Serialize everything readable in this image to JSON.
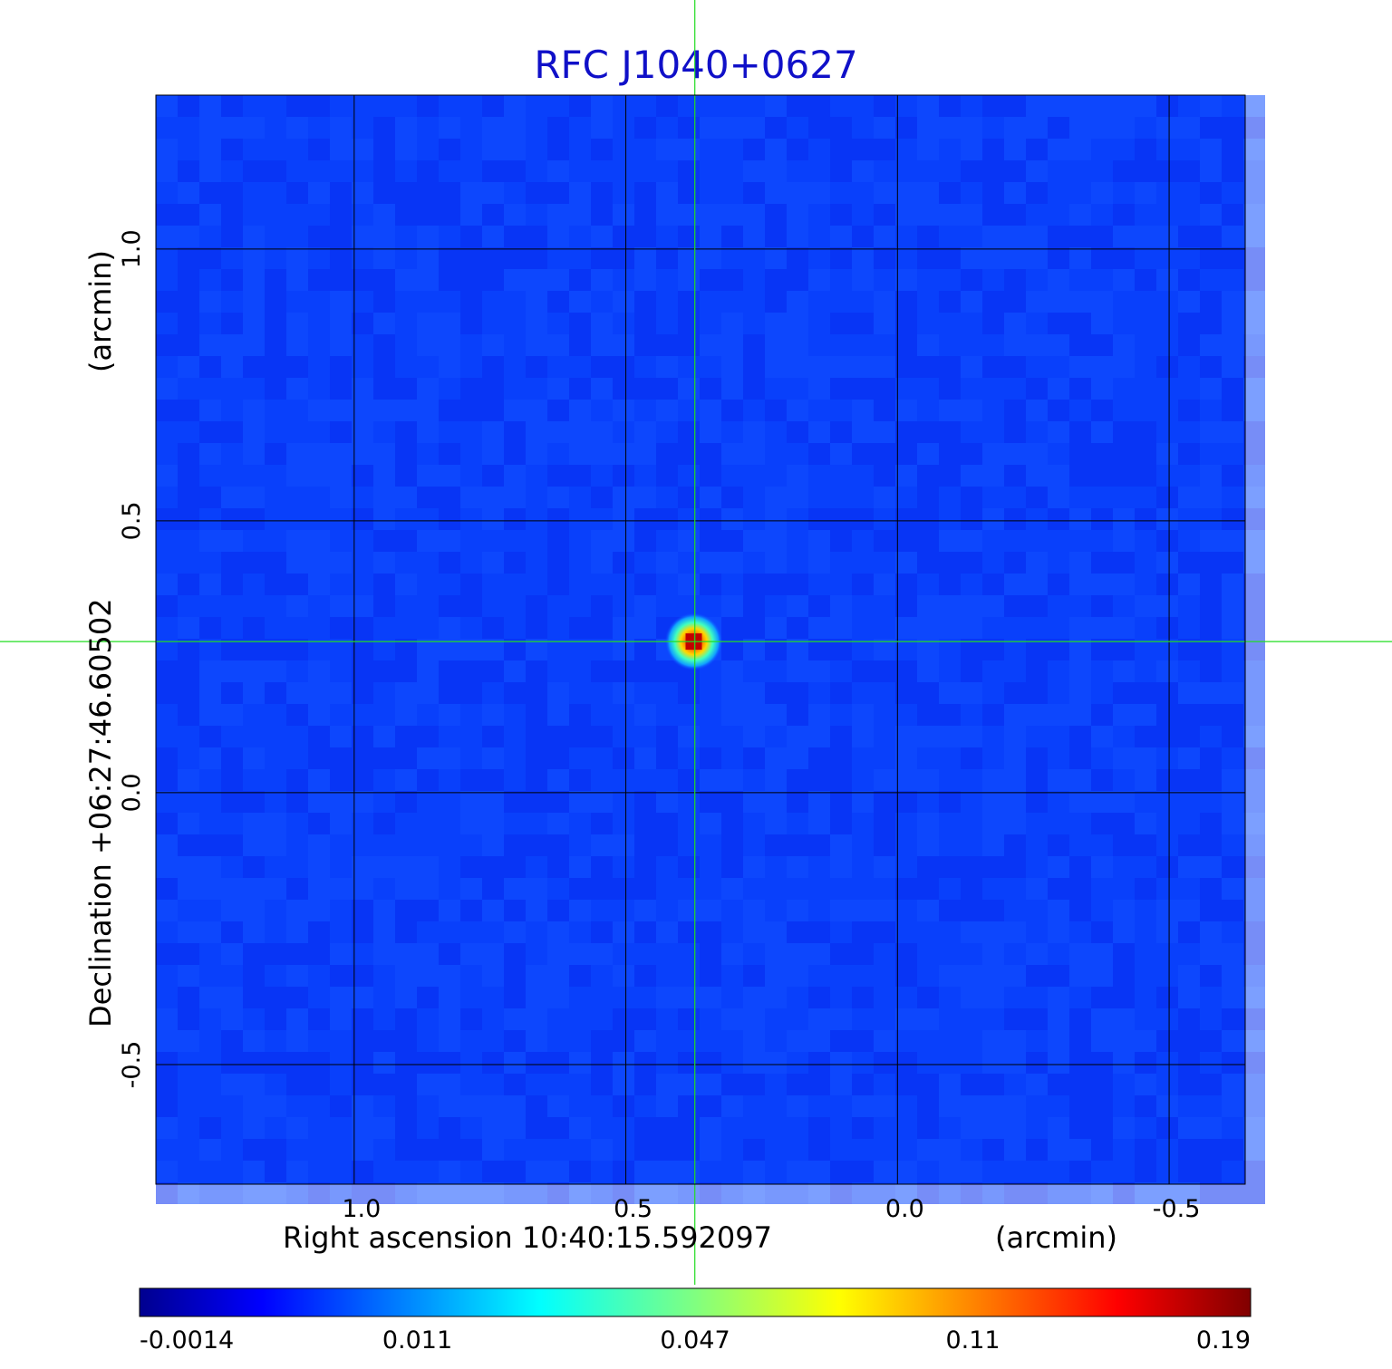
{
  "chart_data": {
    "type": "heatmap",
    "title": "RFC J1040+0627",
    "xlabel": "Right ascension  10:40:15.592097",
    "xlabel_unit": "(arcmin)",
    "ylabel": "Declination  +06:27:46.60502",
    "ylabel_unit": "(arcmin)",
    "x_ticks": [
      "1.0",
      "0.5",
      "0.0",
      "-0.5"
    ],
    "x_tick_values": [
      1.0,
      0.5,
      0.0,
      -0.5
    ],
    "y_ticks": [
      "1.0",
      "0.5",
      "0.0",
      "-0.5"
    ],
    "y_tick_values": [
      1.0,
      0.5,
      0.0,
      -0.5
    ],
    "xlim": [
      1.365,
      -0.64
    ],
    "ylim": [
      -0.72,
      1.283
    ],
    "grid": true,
    "colormap": "jet",
    "colorbar": {
      "position": "bottom",
      "tick_labels": [
        "-0.0014",
        "0.011",
        "0.047",
        "0.11",
        "0.19"
      ],
      "min": -0.0014,
      "max": 0.19
    },
    "source": {
      "ra_offset_arcmin": 0.375,
      "dec_offset_arcmin": 0.278,
      "peak": 0.19
    },
    "crosshair": {
      "ra_offset_arcmin": 0.373,
      "dec_offset_arcmin": 0.278,
      "color": "#22dd22"
    },
    "background_level": 0.003
  }
}
